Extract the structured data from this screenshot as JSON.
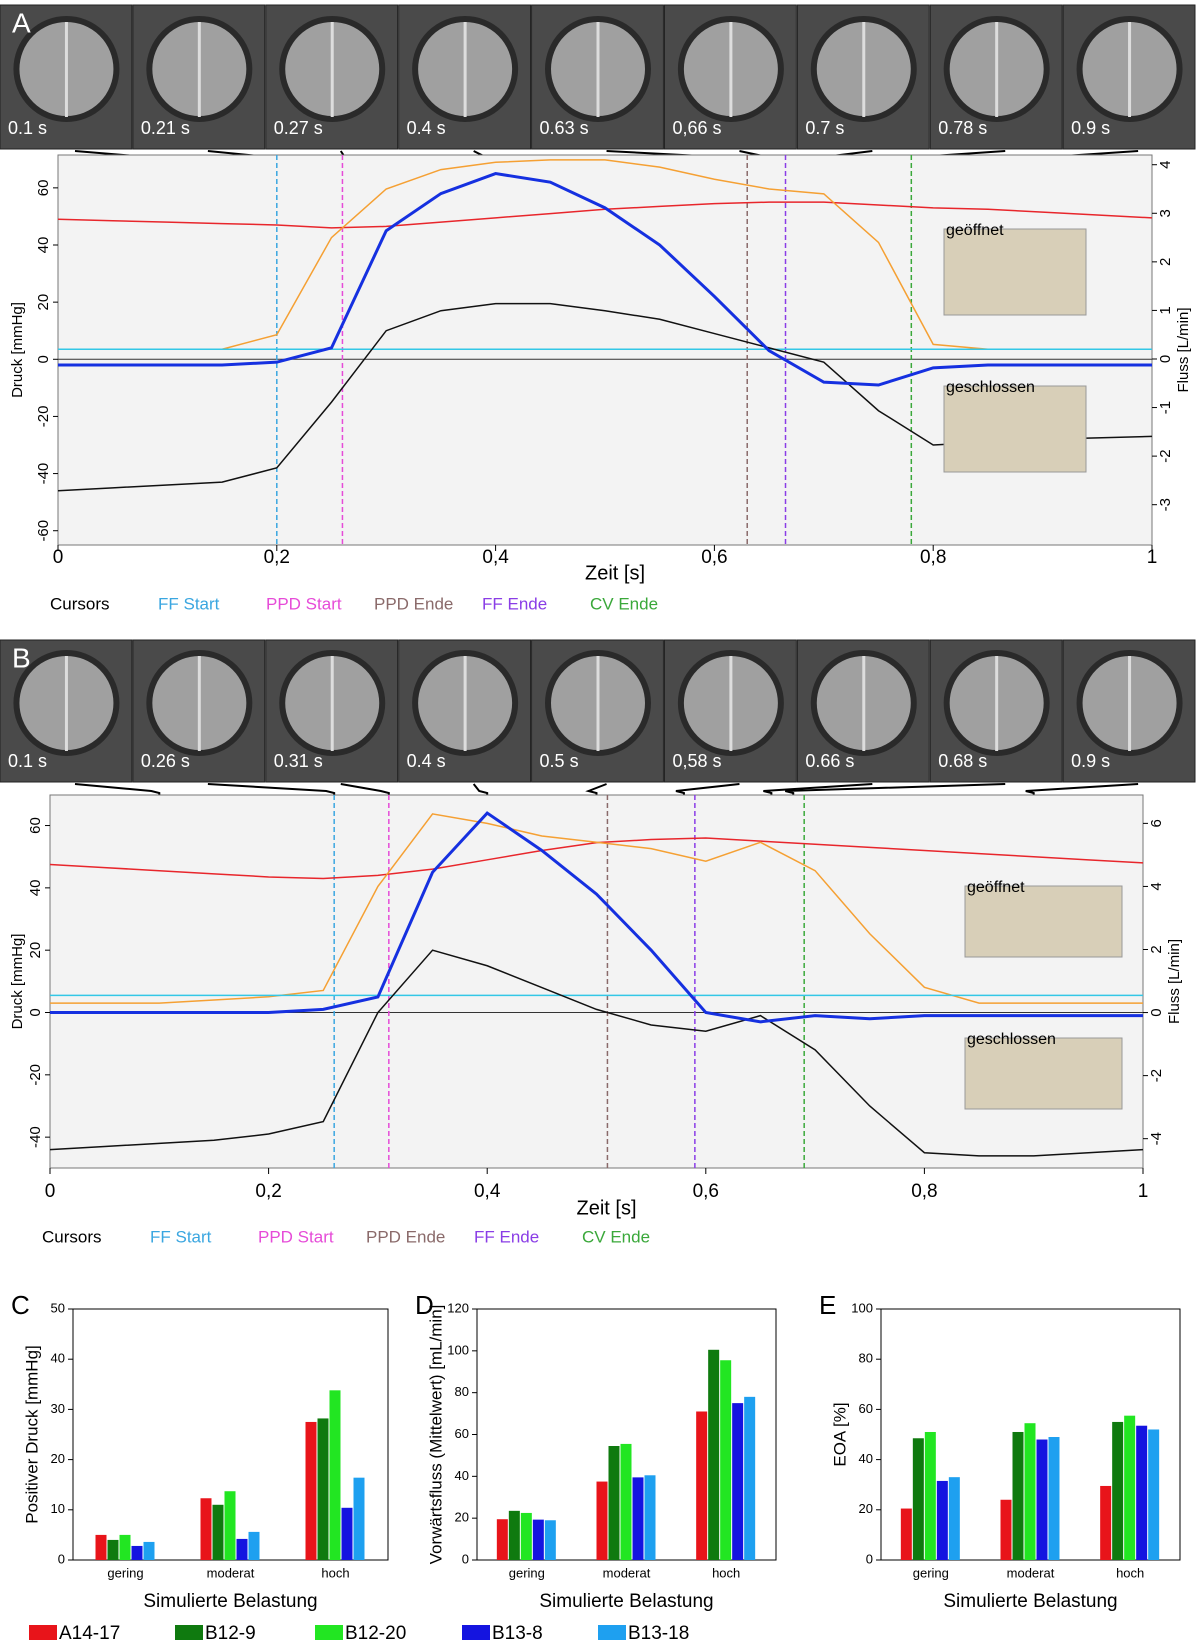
{
  "chart_data": [
    {
      "type": "line",
      "label": "A",
      "xlabel": "Zeit [s]",
      "ylabel": "Druck [mmHg]",
      "y2label": "Fluss [L/min]",
      "xlim": [
        0,
        1
      ],
      "xticks": [
        0,
        {
          "value": 0.2,
          "label": "0,2"
        },
        {
          "value": 0.4,
          "label": "0,4"
        },
        {
          "value": 0.6,
          "label": "0,6"
        },
        {
          "value": 0.8,
          "label": "0,8"
        },
        1
      ],
      "ylim": [
        -65,
        71.5
      ],
      "yticks": [
        -60,
        -40,
        -20,
        0,
        20,
        40,
        60
      ],
      "y2lim": [
        -3.83,
        4.2
      ],
      "y2ticks": [
        -3,
        -2,
        -1,
        0,
        1,
        2,
        3,
        4
      ],
      "x": [
        0,
        0.05,
        0.1,
        0.15,
        0.2,
        0.25,
        0.3,
        0.35,
        0.4,
        0.45,
        0.5,
        0.55,
        0.6,
        0.65,
        0.7,
        0.75,
        0.8,
        0.85,
        0.9,
        0.95,
        1
      ],
      "series": [
        {
          "color": "#e8262b",
          "values": [
            49,
            48.5,
            48,
            47.5,
            47,
            46,
            46.5,
            48,
            49.5,
            51,
            52.5,
            53.5,
            54.5,
            55,
            55,
            54,
            53,
            52.5,
            51.5,
            50.5,
            49.5
          ]
        },
        {
          "color": "#f5a033",
          "axis": "y2",
          "values": [
            0.2,
            0.2,
            0.2,
            0.2,
            0.5,
            2.5,
            3.5,
            3.9,
            4.05,
            4.1,
            4.1,
            3.95,
            3.7,
            3.5,
            3.4,
            2.4,
            0.3,
            0.2,
            0.2,
            0.2,
            0.2
          ]
        },
        {
          "color": "#33c7e6",
          "values": [
            3.5,
            3.5,
            3.5,
            3.5,
            3.5,
            3.5,
            3.5,
            3.5,
            3.5,
            3.5,
            3.5,
            3.5,
            3.5,
            3.5,
            3.5,
            3.5,
            3.5,
            3.5,
            3.5,
            3.5,
            3.5
          ]
        },
        {
          "color": "#111111",
          "values": [
            -46,
            -45,
            -44,
            -43,
            -38,
            -15,
            10,
            17,
            19.5,
            19.5,
            17,
            14,
            9,
            4,
            -1,
            -18,
            -30,
            -29,
            -28,
            -27.5,
            -27
          ]
        },
        {
          "color": "#1530e0",
          "values": [
            -2,
            -2,
            -2,
            -2,
            -1,
            4,
            45,
            58,
            65,
            62,
            53,
            40,
            22,
            3,
            -8,
            -9,
            -3,
            -2,
            -2,
            -2,
            -2
          ]
        }
      ],
      "frames": [
        {
          "label": "0.1 s",
          "time": 0.1
        },
        {
          "label": "0.21 s",
          "time": 0.21
        },
        {
          "label": "0.27 s",
          "time": 0.27
        },
        {
          "label": "0.4 s",
          "time": 0.4
        },
        {
          "label": "0.63 s",
          "time": 0.63
        },
        {
          "label": "0,66 s",
          "time": 0.66
        },
        {
          "label": "0.7 s",
          "time": 0.7
        },
        {
          "label": "0.78 s",
          "time": 0.78
        },
        {
          "label": "0.9 s",
          "time": 0.9
        }
      ],
      "insets": [
        {
          "label": "geöffnet"
        },
        {
          "label": "geschlossen"
        }
      ],
      "cursor_title": "Cursors",
      "cursors": [
        {
          "name": "FF Start",
          "x": 0.2,
          "color": "#3aa6e0"
        },
        {
          "name": "PPD Start",
          "x": 0.26,
          "color": "#e64bd8"
        },
        {
          "name": "PPD Ende",
          "x": 0.63,
          "color": "#8a6a6a"
        },
        {
          "name": "FF Ende",
          "x": 0.665,
          "color": "#8a3de6"
        },
        {
          "name": "CV Ende",
          "x": 0.78,
          "color": "#3aa83a"
        }
      ]
    },
    {
      "type": "line",
      "label": "B",
      "xlabel": "Zeit [s]",
      "ylabel": "Druck [mmHg]",
      "y2label": "Fluss [L/min]",
      "xlim": [
        0,
        1
      ],
      "xticks": [
        0,
        {
          "value": 0.2,
          "label": "0,2"
        },
        {
          "value": 0.4,
          "label": "0,4"
        },
        {
          "value": 0.6,
          "label": "0,6"
        },
        {
          "value": 0.8,
          "label": "0,8"
        },
        1
      ],
      "ylim": [
        -49.9,
        69.8
      ],
      "yticks": [
        -40,
        -20,
        0,
        20,
        40,
        60
      ],
      "y2lim": [
        -4.93,
        6.9
      ],
      "y2ticks": [
        -4,
        -2,
        0,
        2,
        4,
        6
      ],
      "x": [
        0,
        0.05,
        0.1,
        0.15,
        0.2,
        0.25,
        0.3,
        0.35,
        0.4,
        0.45,
        0.5,
        0.55,
        0.6,
        0.65,
        0.7,
        0.75,
        0.8,
        0.85,
        0.9,
        0.95,
        1
      ],
      "series": [
        {
          "color": "#e8262b",
          "values": [
            47.5,
            46.5,
            45.5,
            44.5,
            43.5,
            43,
            44,
            46,
            49,
            52,
            54.5,
            55.5,
            56,
            55,
            54,
            53,
            52,
            51,
            50,
            49,
            48
          ]
        },
        {
          "color": "#f5a033",
          "axis": "y2",
          "values": [
            0.3,
            0.3,
            0.3,
            0.4,
            0.5,
            0.7,
            4,
            6.3,
            6,
            5.6,
            5.4,
            5.2,
            4.8,
            5.4,
            4.5,
            2.5,
            0.8,
            0.3,
            0.3,
            0.3,
            0.3
          ]
        },
        {
          "color": "#33c7e6",
          "values": [
            5.5,
            5.5,
            5.5,
            5.5,
            5.5,
            5.5,
            5.5,
            5.5,
            5.5,
            5.5,
            5.5,
            5.5,
            5.5,
            5.5,
            5.5,
            5.5,
            5.5,
            5.5,
            5.5,
            5.5,
            5.5
          ]
        },
        {
          "color": "#111111",
          "values": [
            -44,
            -43,
            -42,
            -41,
            -39,
            -35,
            0,
            20,
            15,
            8,
            1,
            -4,
            -6,
            -1,
            -12,
            -30,
            -45,
            -46,
            -46,
            -45,
            -44
          ]
        },
        {
          "color": "#1530e0",
          "values": [
            0,
            0,
            0,
            0,
            0,
            1,
            5,
            45,
            64,
            52,
            38,
            20,
            0,
            -3,
            -1,
            -2,
            -1,
            -1,
            -1,
            -1,
            -1
          ]
        }
      ],
      "frames": [
        {
          "label": "0.1 s",
          "time": 0.1
        },
        {
          "label": "0.26 s",
          "time": 0.26
        },
        {
          "label": "0.31 s",
          "time": 0.31
        },
        {
          "label": "0.4 s",
          "time": 0.4
        },
        {
          "label": "0.5 s",
          "time": 0.5
        },
        {
          "label": "0,58 s",
          "time": 0.58
        },
        {
          "label": "0.66 s",
          "time": 0.66
        },
        {
          "label": "0.68 s",
          "time": 0.68
        },
        {
          "label": "0.9 s",
          "time": 0.9
        }
      ],
      "insets": [
        {
          "label": "geöffnet"
        },
        {
          "label": "geschlossen"
        }
      ],
      "cursor_title": "Cursors",
      "cursors": [
        {
          "name": "FF Start",
          "x": 0.26,
          "color": "#3aa6e0"
        },
        {
          "name": "PPD Start",
          "x": 0.31,
          "color": "#e64bd8"
        },
        {
          "name": "PPD Ende",
          "x": 0.51,
          "color": "#8a6a6a"
        },
        {
          "name": "FF Ende",
          "x": 0.59,
          "color": "#8a3de6"
        },
        {
          "name": "CV Ende",
          "x": 0.69,
          "color": "#3aa83a"
        }
      ]
    },
    {
      "type": "bar",
      "label": "C",
      "xlabel": "Simulierte Belastung",
      "ylabel": "Positiver Druck [mmHg]",
      "categories": [
        "gering",
        "moderat",
        "hoch"
      ],
      "ylim": [
        0,
        50
      ],
      "yticks": [
        0,
        10,
        20,
        30,
        40,
        50
      ],
      "series": [
        {
          "name": "A14-17",
          "color": "#e8141a",
          "values": [
            5,
            12.3,
            27.5
          ]
        },
        {
          "name": "B12-9",
          "color": "#0f7a0f",
          "values": [
            4,
            11,
            28.2
          ]
        },
        {
          "name": "B12-20",
          "color": "#22e622",
          "values": [
            5,
            13.7,
            33.8
          ]
        },
        {
          "name": "B13-8",
          "color": "#1414e0",
          "values": [
            2.8,
            4.2,
            10.4
          ]
        },
        {
          "name": "B13-18",
          "color": "#1ea0f0",
          "values": [
            3.6,
            5.6,
            16.4
          ]
        }
      ]
    },
    {
      "type": "bar",
      "label": "D",
      "xlabel": "Simulierte Belastung",
      "ylabel": "Vorwärtsfluss (Mittelwert) [mL/min]",
      "categories": [
        "gering",
        "moderat",
        "hoch"
      ],
      "ylim": [
        0,
        120
      ],
      "yticks": [
        0,
        20,
        40,
        60,
        80,
        100,
        120
      ],
      "series": [
        {
          "color": "#e8141a",
          "values": [
            19.5,
            37.5,
            71
          ]
        },
        {
          "color": "#0f7a0f",
          "values": [
            23.5,
            54.5,
            100.5
          ]
        },
        {
          "color": "#22e622",
          "values": [
            22.5,
            55.5,
            95.5
          ]
        },
        {
          "color": "#1414e0",
          "values": [
            19.3,
            39.5,
            75
          ]
        },
        {
          "color": "#1ea0f0",
          "values": [
            19,
            40.5,
            78
          ]
        }
      ]
    },
    {
      "type": "bar",
      "label": "E",
      "xlabel": "Simulierte Belastung",
      "ylabel": "EOA [%]",
      "categories": [
        "gering",
        "moderat",
        "hoch"
      ],
      "ylim": [
        0,
        100
      ],
      "yticks": [
        0,
        20,
        40,
        60,
        80,
        100
      ],
      "series": [
        {
          "color": "#e8141a",
          "values": [
            20.5,
            24,
            29.5
          ]
        },
        {
          "color": "#0f7a0f",
          "values": [
            48.5,
            51,
            55
          ]
        },
        {
          "color": "#22e622",
          "values": [
            51,
            54.5,
            57.5
          ]
        },
        {
          "color": "#1414e0",
          "values": [
            31.5,
            48,
            53.5
          ]
        },
        {
          "color": "#1ea0f0",
          "values": [
            33,
            49,
            52
          ]
        }
      ]
    }
  ]
}
